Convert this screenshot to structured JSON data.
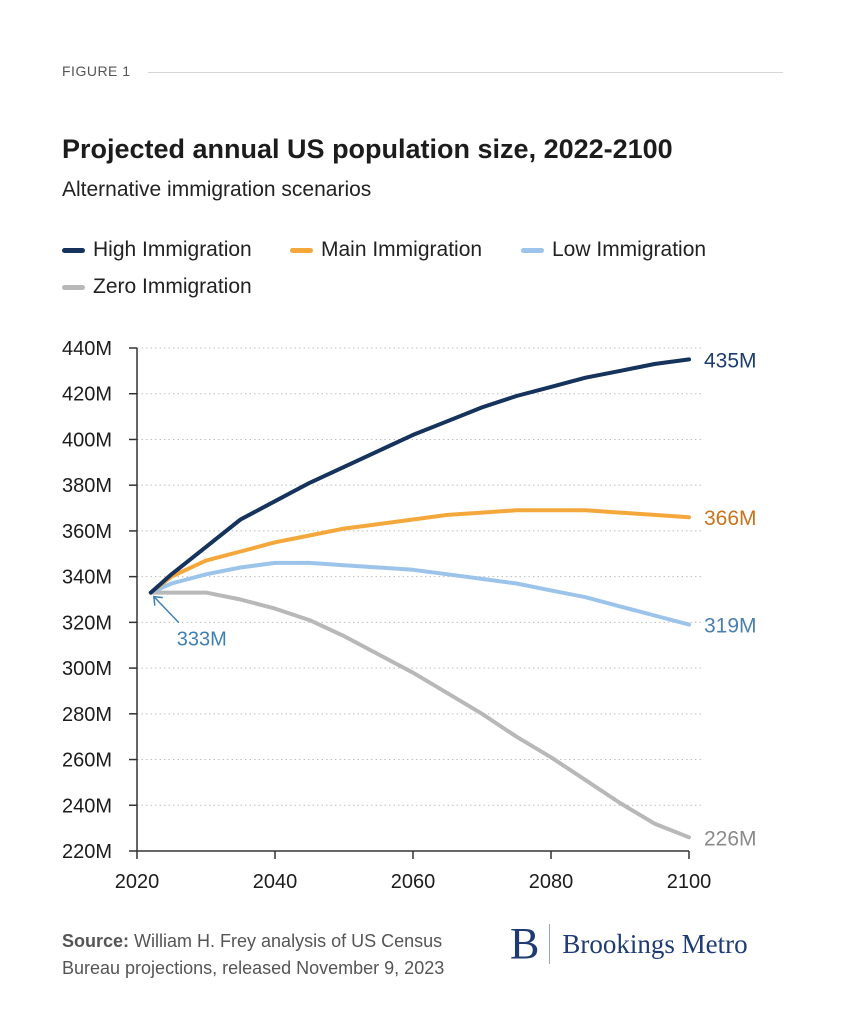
{
  "figure_label": "FIGURE 1",
  "source": {
    "label": "Source:",
    "text": "William H. Frey analysis of US Census Bureau projections, released November 9, 2023"
  },
  "brand": {
    "mark": "B",
    "name": "Brookings Metro"
  },
  "colors": {
    "high": "#15335c",
    "main": "#f4a73b",
    "low": "#9cc4ea",
    "zero": "#b8b8b8",
    "label_high": "#1c3d6e",
    "label_main": "#c9731c",
    "label_low": "#4b7fae",
    "label_zero": "#8a8a8a",
    "start_label": "#3f80b4"
  },
  "chart_data": {
    "type": "line",
    "title": "Projected annual US population size, 2022-2100",
    "subtitle": "Alternative immigration scenarios",
    "xlabel": "",
    "ylabel": "",
    "xlim": [
      2020,
      2100
    ],
    "ylim": [
      220,
      440
    ],
    "x_ticks": [
      "2020",
      "2040",
      "2060",
      "2080",
      "2100"
    ],
    "y_ticks": [
      "220M",
      "240M",
      "260M",
      "280M",
      "300M",
      "320M",
      "340M",
      "360M",
      "380M",
      "400M",
      "420M",
      "440M"
    ],
    "grid": "horizontal dotted",
    "legend_position": "top",
    "start_annotation": "333M",
    "x": [
      2022,
      2025,
      2030,
      2035,
      2040,
      2045,
      2050,
      2055,
      2060,
      2065,
      2070,
      2075,
      2080,
      2085,
      2090,
      2095,
      2100
    ],
    "series": [
      {
        "name": "High Immigration",
        "key": "high",
        "end_label": "435M",
        "values": [
          333,
          341,
          353,
          365,
          373,
          381,
          388,
          395,
          402,
          408,
          414,
          419,
          423,
          427,
          430,
          433,
          435
        ]
      },
      {
        "name": "Main Immigration",
        "key": "main",
        "end_label": "366M",
        "values": [
          333,
          340,
          347,
          351,
          355,
          358,
          361,
          363,
          365,
          367,
          368,
          369,
          369,
          369,
          368,
          367,
          366
        ]
      },
      {
        "name": "Low Immigration",
        "key": "low",
        "end_label": "319M",
        "values": [
          333,
          337,
          341,
          344,
          346,
          346,
          345,
          344,
          343,
          341,
          339,
          337,
          334,
          331,
          327,
          323,
          319
        ]
      },
      {
        "name": "Zero Immigration",
        "key": "zero",
        "end_label": "226M",
        "values": [
          333,
          333,
          333,
          330,
          326,
          321,
          314,
          306,
          298,
          289,
          280,
          270,
          261,
          251,
          241,
          232,
          226
        ]
      }
    ]
  }
}
